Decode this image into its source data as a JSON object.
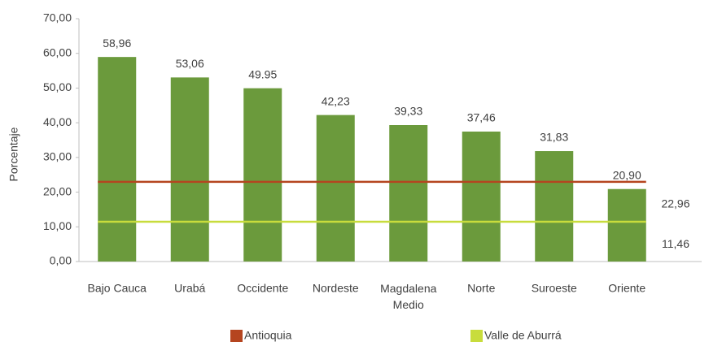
{
  "chart_data": {
    "type": "bar",
    "y_label": "Porcentaje",
    "categories": [
      "Bajo Cauca",
      "Urabá",
      "Occidente",
      "Nordeste",
      "Magdalena Medio",
      "Norte",
      "Suroeste",
      "Oriente"
    ],
    "values": [
      58.96,
      53.06,
      49.95,
      42.23,
      39.33,
      37.46,
      31.83,
      20.9
    ],
    "value_labels": [
      "58,96",
      "53,06",
      "49.95",
      "42,23",
      "39,33",
      "37,46",
      "31,83",
      "20,90"
    ],
    "color": "#6b9a3c",
    "ylim": [
      0,
      70
    ],
    "yticks": [
      {
        "value": 0,
        "label": "0,00"
      },
      {
        "value": 10,
        "label": "10,00"
      },
      {
        "value": 20,
        "label": "20,00"
      },
      {
        "value": 30,
        "label": "30,00"
      },
      {
        "value": 40,
        "label": "40,00"
      },
      {
        "value": 50,
        "label": "50,00"
      },
      {
        "value": 60,
        "label": "60,00"
      },
      {
        "value": 70,
        "label": "70,00"
      }
    ],
    "reference_lines": [
      {
        "name": "Antioquia",
        "color": "#b5451f",
        "value": 22.96,
        "value_label": "22,96"
      },
      {
        "name": "Valle de Aburrá",
        "color": "#c8dc3c",
        "value": 11.46,
        "value_label": "11,46"
      }
    ]
  }
}
